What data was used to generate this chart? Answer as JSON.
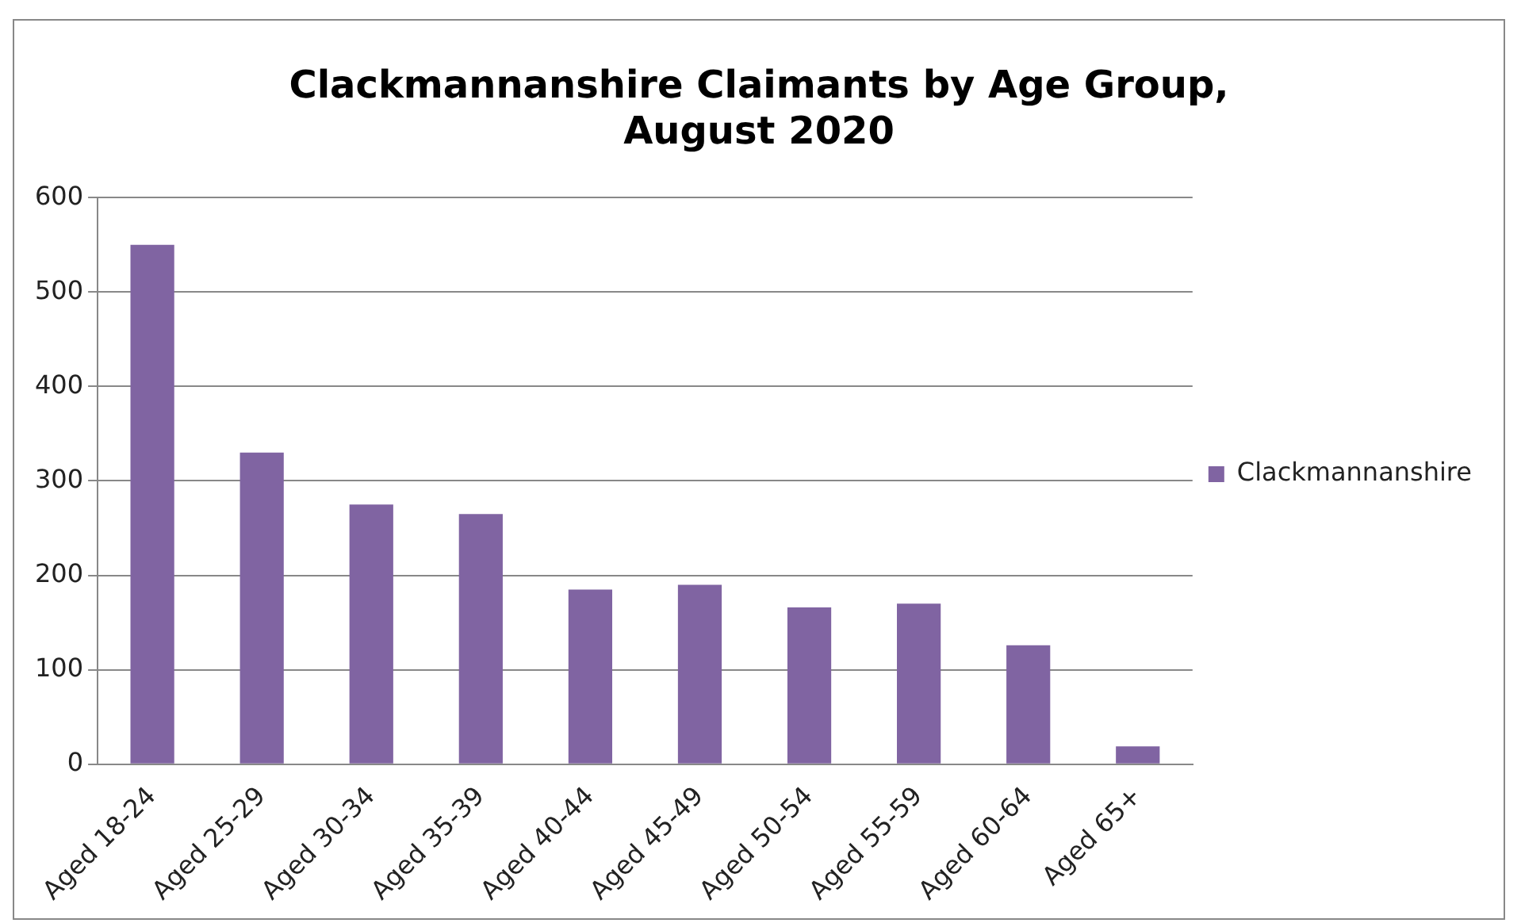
{
  "chart_data": {
    "type": "bar",
    "title": [
      "Clackmannanshire Claimants by Age Group,",
      "August 2020"
    ],
    "categories": [
      "Aged 18-24",
      "Aged 25-29",
      "Aged 30-34",
      "Aged 35-39",
      "Aged 40-44",
      "Aged 45-49",
      "Aged 50-54",
      "Aged 55-59",
      "Aged 60-64",
      "Aged 65+"
    ],
    "series": [
      {
        "name": "Clackmannanshire",
        "color": "#8064a2",
        "values": [
          550,
          330,
          275,
          265,
          185,
          190,
          166,
          170,
          126,
          19
        ]
      }
    ],
    "ylim": [
      0,
      600
    ],
    "yticks": [
      0,
      100,
      200,
      300,
      400,
      500,
      600
    ],
    "grid": "y",
    "legend": "right"
  }
}
